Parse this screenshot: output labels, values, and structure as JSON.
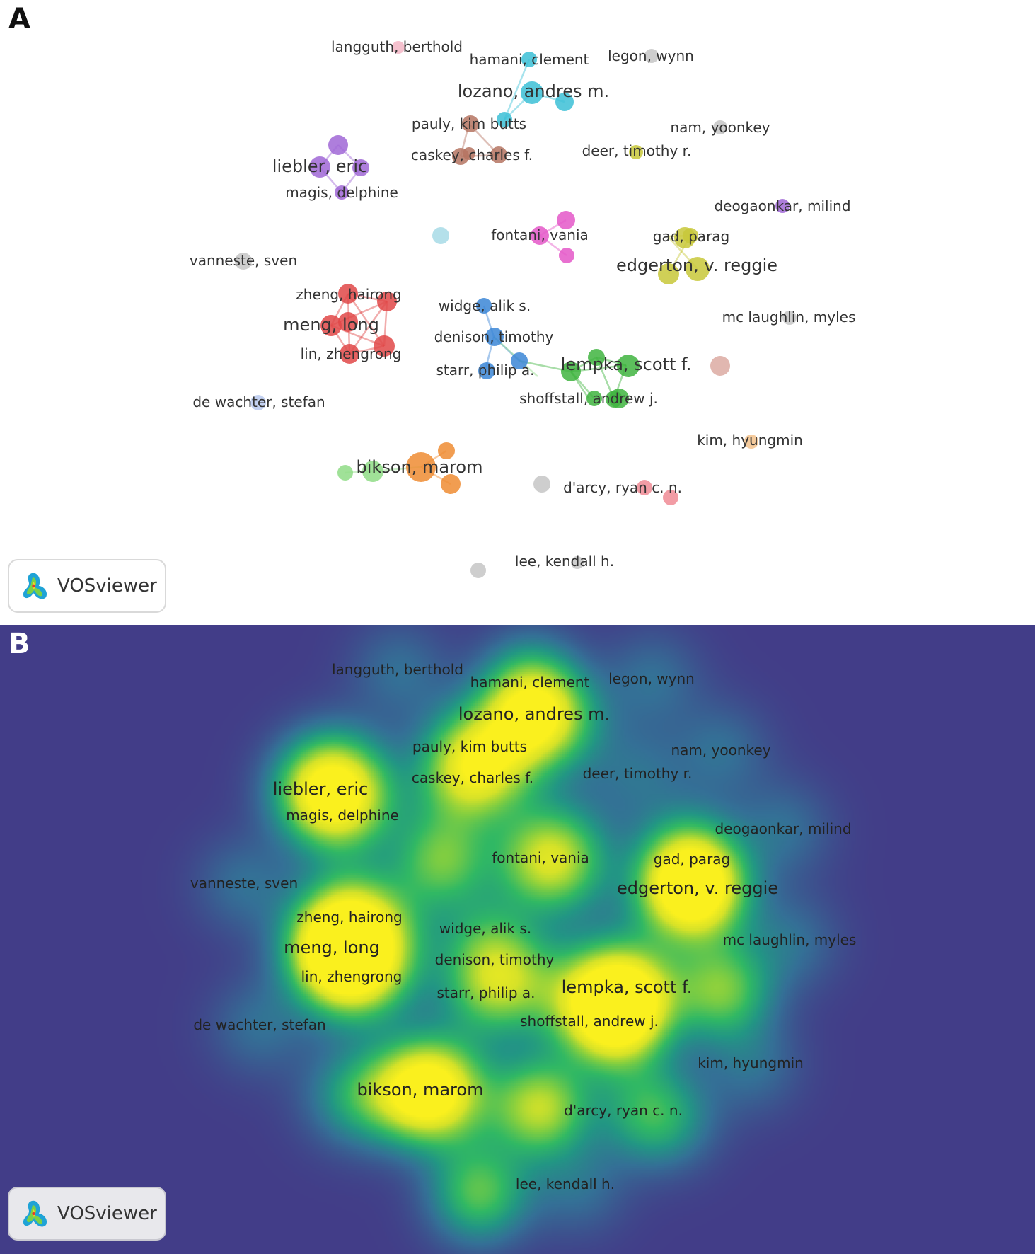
{
  "panels": [
    {
      "letter": "A",
      "badge": "VOSviewer"
    },
    {
      "letter": "B",
      "badge": "VOSviewer"
    }
  ],
  "colors": {
    "heat_background": "#423d88",
    "cluster_red": "#e04848",
    "cluster_green": "#3fb43f",
    "cluster_blue": "#3b86d6",
    "cluster_yellow": "#c8c83a",
    "cluster_purple": "#a067d6",
    "cluster_cyan": "#3cc0d6",
    "cluster_orange": "#ef8c33",
    "cluster_brown": "#b57462",
    "cluster_pink": "#e457c8",
    "cluster_grey": "#c6c6c6"
  },
  "authors": [
    {
      "label": "langguth, berthold",
      "cluster": "lightpink",
      "size": 1,
      "weight": 1
    },
    {
      "label": "hamani, clement",
      "cluster": "cyan",
      "size": 1,
      "weight": 2
    },
    {
      "label": "legon, wynn",
      "cluster": "grey",
      "size": 1,
      "weight": 1
    },
    {
      "label": "lozano, andres m.",
      "cluster": "cyan",
      "size": 2,
      "weight": 4
    },
    {
      "label": "pauly, kim butts",
      "cluster": "brown",
      "size": 1,
      "weight": 2
    },
    {
      "label": "nam, yoonkey",
      "cluster": "grey",
      "size": 1,
      "weight": 1
    },
    {
      "label": "caskey, charles f.",
      "cluster": "brown",
      "size": 1,
      "weight": 2
    },
    {
      "label": "deer, timothy r.",
      "cluster": "yellow",
      "size": 1,
      "weight": 1
    },
    {
      "label": "liebler, eric",
      "cluster": "purple",
      "size": 2,
      "weight": 4
    },
    {
      "label": "magis, delphine",
      "cluster": "purple",
      "size": 1,
      "weight": 2
    },
    {
      "label": "deogaonkar, milind",
      "cluster": "purple",
      "size": 1,
      "weight": 1
    },
    {
      "label": "fontani, vania",
      "cluster": "pink",
      "size": 1,
      "weight": 3
    },
    {
      "label": "gad, parag",
      "cluster": "yellow",
      "size": 1,
      "weight": 2
    },
    {
      "label": "vanneste, sven",
      "cluster": "grey",
      "size": 1,
      "weight": 1
    },
    {
      "label": "edgerton, v. reggie",
      "cluster": "yellow",
      "size": 2,
      "weight": 5
    },
    {
      "label": "zheng, hairong",
      "cluster": "red",
      "size": 1,
      "weight": 3
    },
    {
      "label": "widge, alik s.",
      "cluster": "blue",
      "size": 1,
      "weight": 1
    },
    {
      "label": "mc laughlin, myles",
      "cluster": "grey",
      "size": 1,
      "weight": 1
    },
    {
      "label": "meng, long",
      "cluster": "red",
      "size": 2,
      "weight": 4
    },
    {
      "label": "denison, timothy",
      "cluster": "blue",
      "size": 1,
      "weight": 2
    },
    {
      "label": "lin, zhengrong",
      "cluster": "red",
      "size": 1,
      "weight": 3
    },
    {
      "label": "lempka, scott f.",
      "cluster": "green",
      "size": 2,
      "weight": 4
    },
    {
      "label": "starr, philip a.",
      "cluster": "blue",
      "size": 1,
      "weight": 2
    },
    {
      "label": "shoffstall, andrew j.",
      "cluster": "green",
      "size": 1,
      "weight": 3
    },
    {
      "label": "de wachter, stefan",
      "cluster": "lightblue",
      "size": 1,
      "weight": 1
    },
    {
      "label": "kim, hyungmin",
      "cluster": "lightorange",
      "size": 1,
      "weight": 1
    },
    {
      "label": "bikson, marom",
      "cluster": "orange",
      "size": 2,
      "weight": 5
    },
    {
      "label": "d'arcy, ryan c. n.",
      "cluster": "salmon",
      "size": 1,
      "weight": 2
    },
    {
      "label": "lee, kendall h.",
      "cluster": "grey",
      "size": 1,
      "weight": 1
    }
  ]
}
